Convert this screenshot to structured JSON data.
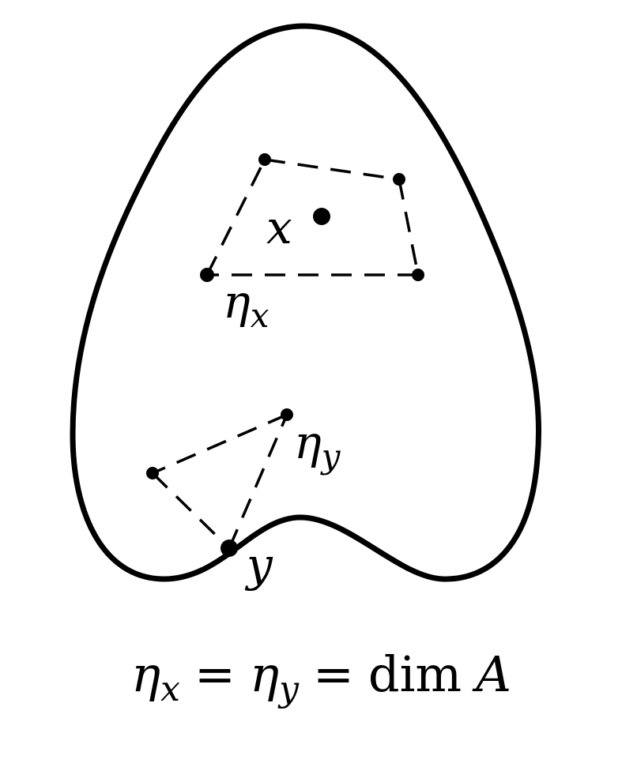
{
  "diagram": {
    "colors": {
      "stroke": "#000000",
      "background": "#ffffff"
    },
    "labels": {
      "x": "x",
      "eta_x_base": "η",
      "eta_x_sub": "x",
      "eta_y_base": "η",
      "eta_y_sub": "y",
      "y": "y"
    },
    "equation": {
      "eta1": "η",
      "sub1": "x",
      "eq1": "=",
      "eta2": "η",
      "sub2": "y",
      "eq2": "=",
      "dim": "dim",
      "A": "A"
    }
  }
}
